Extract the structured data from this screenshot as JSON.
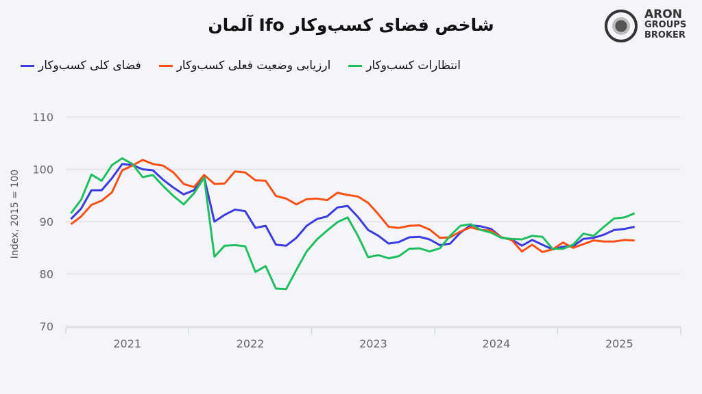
{
  "title": "شاخص فضای کسب‌وکار Ifo آلمان",
  "logo": {
    "lines": [
      "ARON",
      "GROUPS",
      "BROKER"
    ]
  },
  "chart_data": {
    "type": "line",
    "title": "شاخص فضای کسب‌وکار Ifo آلمان",
    "ylabel": "Index, 2015 = 100",
    "xlabel": "",
    "ylim": [
      70,
      110
    ],
    "yticks": [
      "70",
      "80",
      "90",
      "100",
      "110"
    ],
    "xticks": [
      "2021",
      "2022",
      "2023",
      "2024",
      "2025"
    ],
    "x_range": "Jan 2021 – Aug 2025 (monthly)",
    "grid": "horizontal",
    "legend_position": "top",
    "series": [
      {
        "name": "فضای کلی کسب‌وکار",
        "color": "#3b3be0",
        "values": [
          90.5,
          92.5,
          96,
          96,
          98.3,
          101,
          100.8,
          100,
          99.8,
          98,
          96.5,
          95.2,
          96,
          98.5,
          90,
          91.3,
          92.3,
          92,
          88.8,
          89.2,
          85.6,
          85.4,
          86.9,
          89.2,
          90.5,
          91,
          92.7,
          93,
          90.9,
          88.4,
          87.3,
          85.8,
          86.1,
          87,
          87.1,
          86.6,
          85.5,
          85.8,
          87.9,
          89.3,
          89.1,
          88.6,
          87,
          86.6,
          85.4,
          86.5,
          85.6,
          84.7,
          85.2,
          85.3,
          86.7,
          86.9,
          87.5,
          88.4,
          88.6,
          89
        ]
      },
      {
        "name": "ارزیابی وضعیت فعلی کسب‌وکار",
        "color": "#fb4f14",
        "values": [
          89.5,
          91,
          93.2,
          94,
          95.6,
          99.8,
          100.7,
          101.8,
          101,
          100.7,
          99.4,
          97.2,
          96.6,
          98.9,
          97.2,
          97.3,
          99.6,
          99.4,
          97.9,
          97.8,
          94.9,
          94.4,
          93.3,
          94.3,
          94.4,
          94.1,
          95.5,
          95.1,
          94.8,
          93.6,
          91.4,
          89,
          88.8,
          89.2,
          89.3,
          88.5,
          86.9,
          87,
          88.1,
          88.9,
          88.4,
          88.3,
          87,
          86.5,
          84.3,
          85.6,
          84.2,
          84.7,
          86,
          85,
          85.7,
          86.4,
          86.2,
          86.2,
          86.5,
          86.4
        ]
      },
      {
        "name": "انتظارات کسب‌وکار",
        "color": "#1fbf5f",
        "values": [
          91.6,
          94.2,
          99,
          97.8,
          100.8,
          102.1,
          101,
          98.5,
          98.9,
          96.8,
          94.9,
          93.3,
          95.4,
          98.4,
          83.3,
          85.4,
          85.5,
          85.3,
          80.4,
          81.5,
          77.2,
          77.1,
          80.8,
          84.3,
          86.6,
          88.3,
          89.9,
          90.8,
          87.3,
          83.2,
          83.6,
          83,
          83.4,
          84.8,
          84.9,
          84.3,
          84.9,
          87.3,
          89.2,
          89.5,
          88.4,
          87.9,
          86.9,
          86.7,
          86.6,
          87.3,
          87.1,
          84.8,
          84.8,
          85.6,
          87.7,
          87.3,
          89,
          90.6,
          90.8,
          91.6
        ]
      }
    ]
  }
}
